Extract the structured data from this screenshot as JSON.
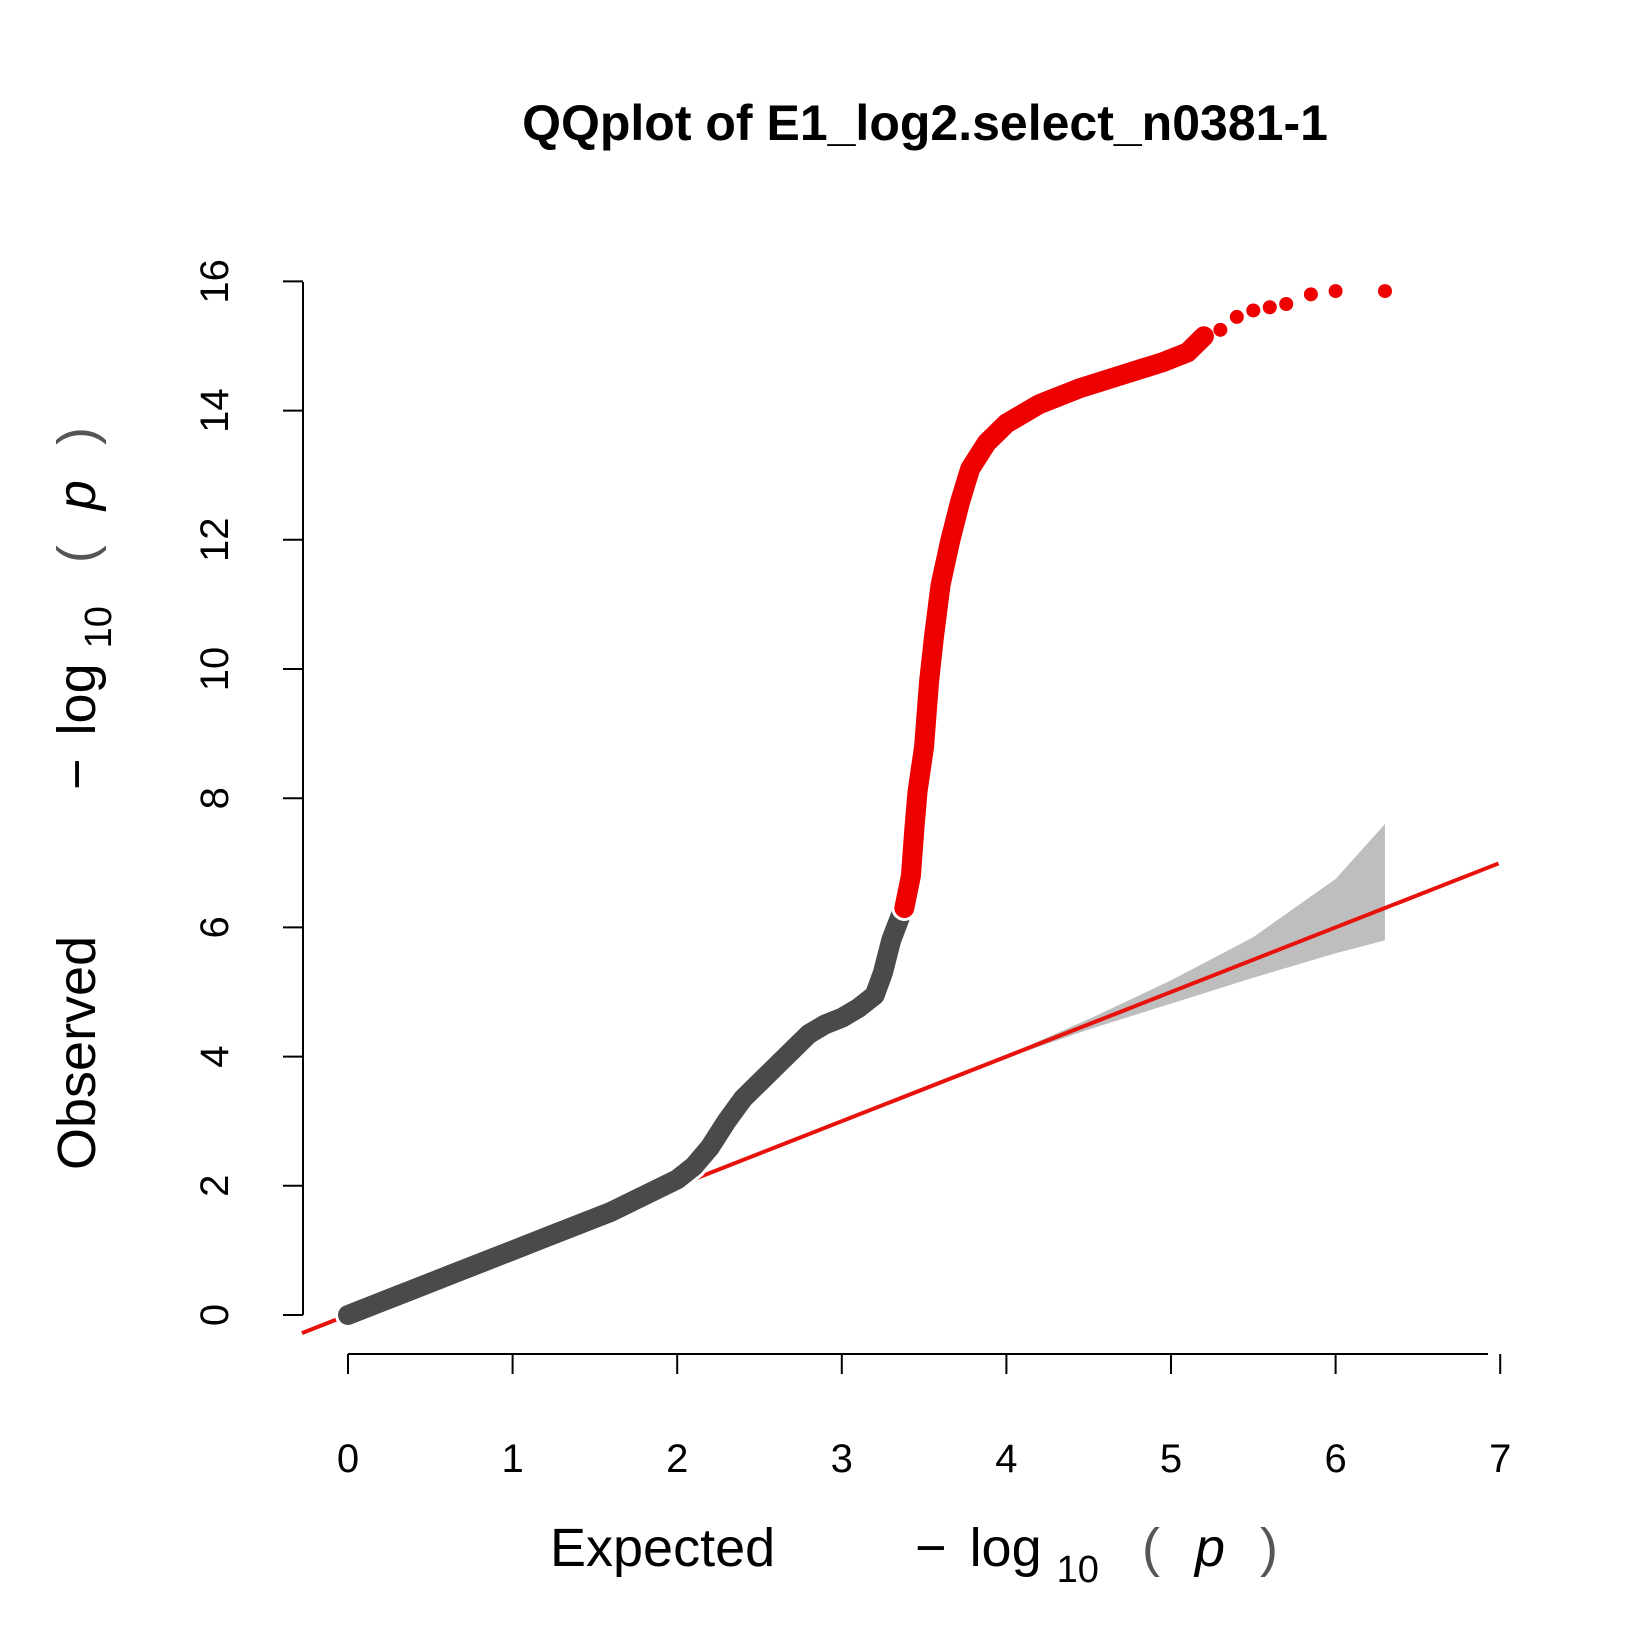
{
  "chart_data": {
    "type": "scatter",
    "title": "QQplot of E1_log2.select_n0381-1",
    "xlabel": {
      "prefix": "Expected",
      "minus": "−",
      "log": "log",
      "sub": "10",
      "lparen": "(",
      "var": "p",
      "rparen": ")"
    },
    "ylabel": {
      "prefix": "Observed",
      "minus": "−",
      "log": "log",
      "sub": "10",
      "lparen": "(",
      "var": "p",
      "rparen": ")"
    },
    "xlim": [
      0,
      7
    ],
    "ylim": [
      0,
      16
    ],
    "x_ticks": [
      "0",
      "1",
      "2",
      "3",
      "4",
      "5",
      "6",
      "7"
    ],
    "y_ticks": [
      "0",
      "2",
      "4",
      "6",
      "8",
      "10",
      "12",
      "14",
      "16"
    ],
    "reference_line": {
      "slope": 1,
      "intercept": 0,
      "color": "#e8120c"
    },
    "confidence_band": {
      "color": "#bebebe",
      "x": [
        4.0,
        4.5,
        5.0,
        5.5,
        6.0,
        6.3
      ],
      "upper": [
        4.02,
        4.58,
        5.18,
        5.85,
        6.75,
        7.6
      ],
      "lower": [
        3.98,
        4.42,
        4.82,
        5.22,
        5.6,
        5.8
      ]
    },
    "series": [
      {
        "color": "#4a4a4a",
        "points": [
          [
            0.0,
            0.0
          ],
          [
            0.2,
            0.2
          ],
          [
            0.4,
            0.4
          ],
          [
            0.6,
            0.6
          ],
          [
            0.8,
            0.8
          ],
          [
            1.0,
            1.0
          ],
          [
            1.2,
            1.2
          ],
          [
            1.4,
            1.4
          ],
          [
            1.6,
            1.6
          ],
          [
            1.8,
            1.85
          ],
          [
            2.0,
            2.1
          ],
          [
            2.1,
            2.3
          ],
          [
            2.2,
            2.6
          ],
          [
            2.3,
            3.0
          ],
          [
            2.4,
            3.35
          ],
          [
            2.5,
            3.6
          ],
          [
            2.6,
            3.85
          ],
          [
            2.7,
            4.1
          ],
          [
            2.8,
            4.35
          ],
          [
            2.9,
            4.5
          ],
          [
            3.0,
            4.6
          ],
          [
            3.1,
            4.75
          ],
          [
            3.2,
            4.95
          ],
          [
            3.25,
            5.3
          ],
          [
            3.3,
            5.8
          ],
          [
            3.36,
            6.2
          ]
        ]
      },
      {
        "color": "#ee0000",
        "points": [
          [
            3.38,
            6.3
          ],
          [
            3.42,
            6.8
          ],
          [
            3.44,
            7.5
          ],
          [
            3.46,
            8.1
          ],
          [
            3.5,
            8.8
          ],
          [
            3.53,
            9.8
          ],
          [
            3.56,
            10.5
          ],
          [
            3.6,
            11.3
          ],
          [
            3.66,
            12.0
          ],
          [
            3.72,
            12.6
          ],
          [
            3.78,
            13.1
          ],
          [
            3.88,
            13.5
          ],
          [
            4.0,
            13.8
          ],
          [
            4.2,
            14.1
          ],
          [
            4.45,
            14.35
          ],
          [
            4.7,
            14.55
          ],
          [
            4.95,
            14.75
          ],
          [
            5.1,
            14.9
          ],
          [
            5.2,
            15.15
          ],
          [
            5.3,
            15.25
          ],
          [
            5.4,
            15.45
          ],
          [
            5.5,
            15.55
          ],
          [
            5.6,
            15.6
          ],
          [
            5.7,
            15.65
          ],
          [
            5.85,
            15.8
          ],
          [
            6.0,
            15.85
          ],
          [
            6.3,
            15.85
          ]
        ]
      }
    ]
  }
}
